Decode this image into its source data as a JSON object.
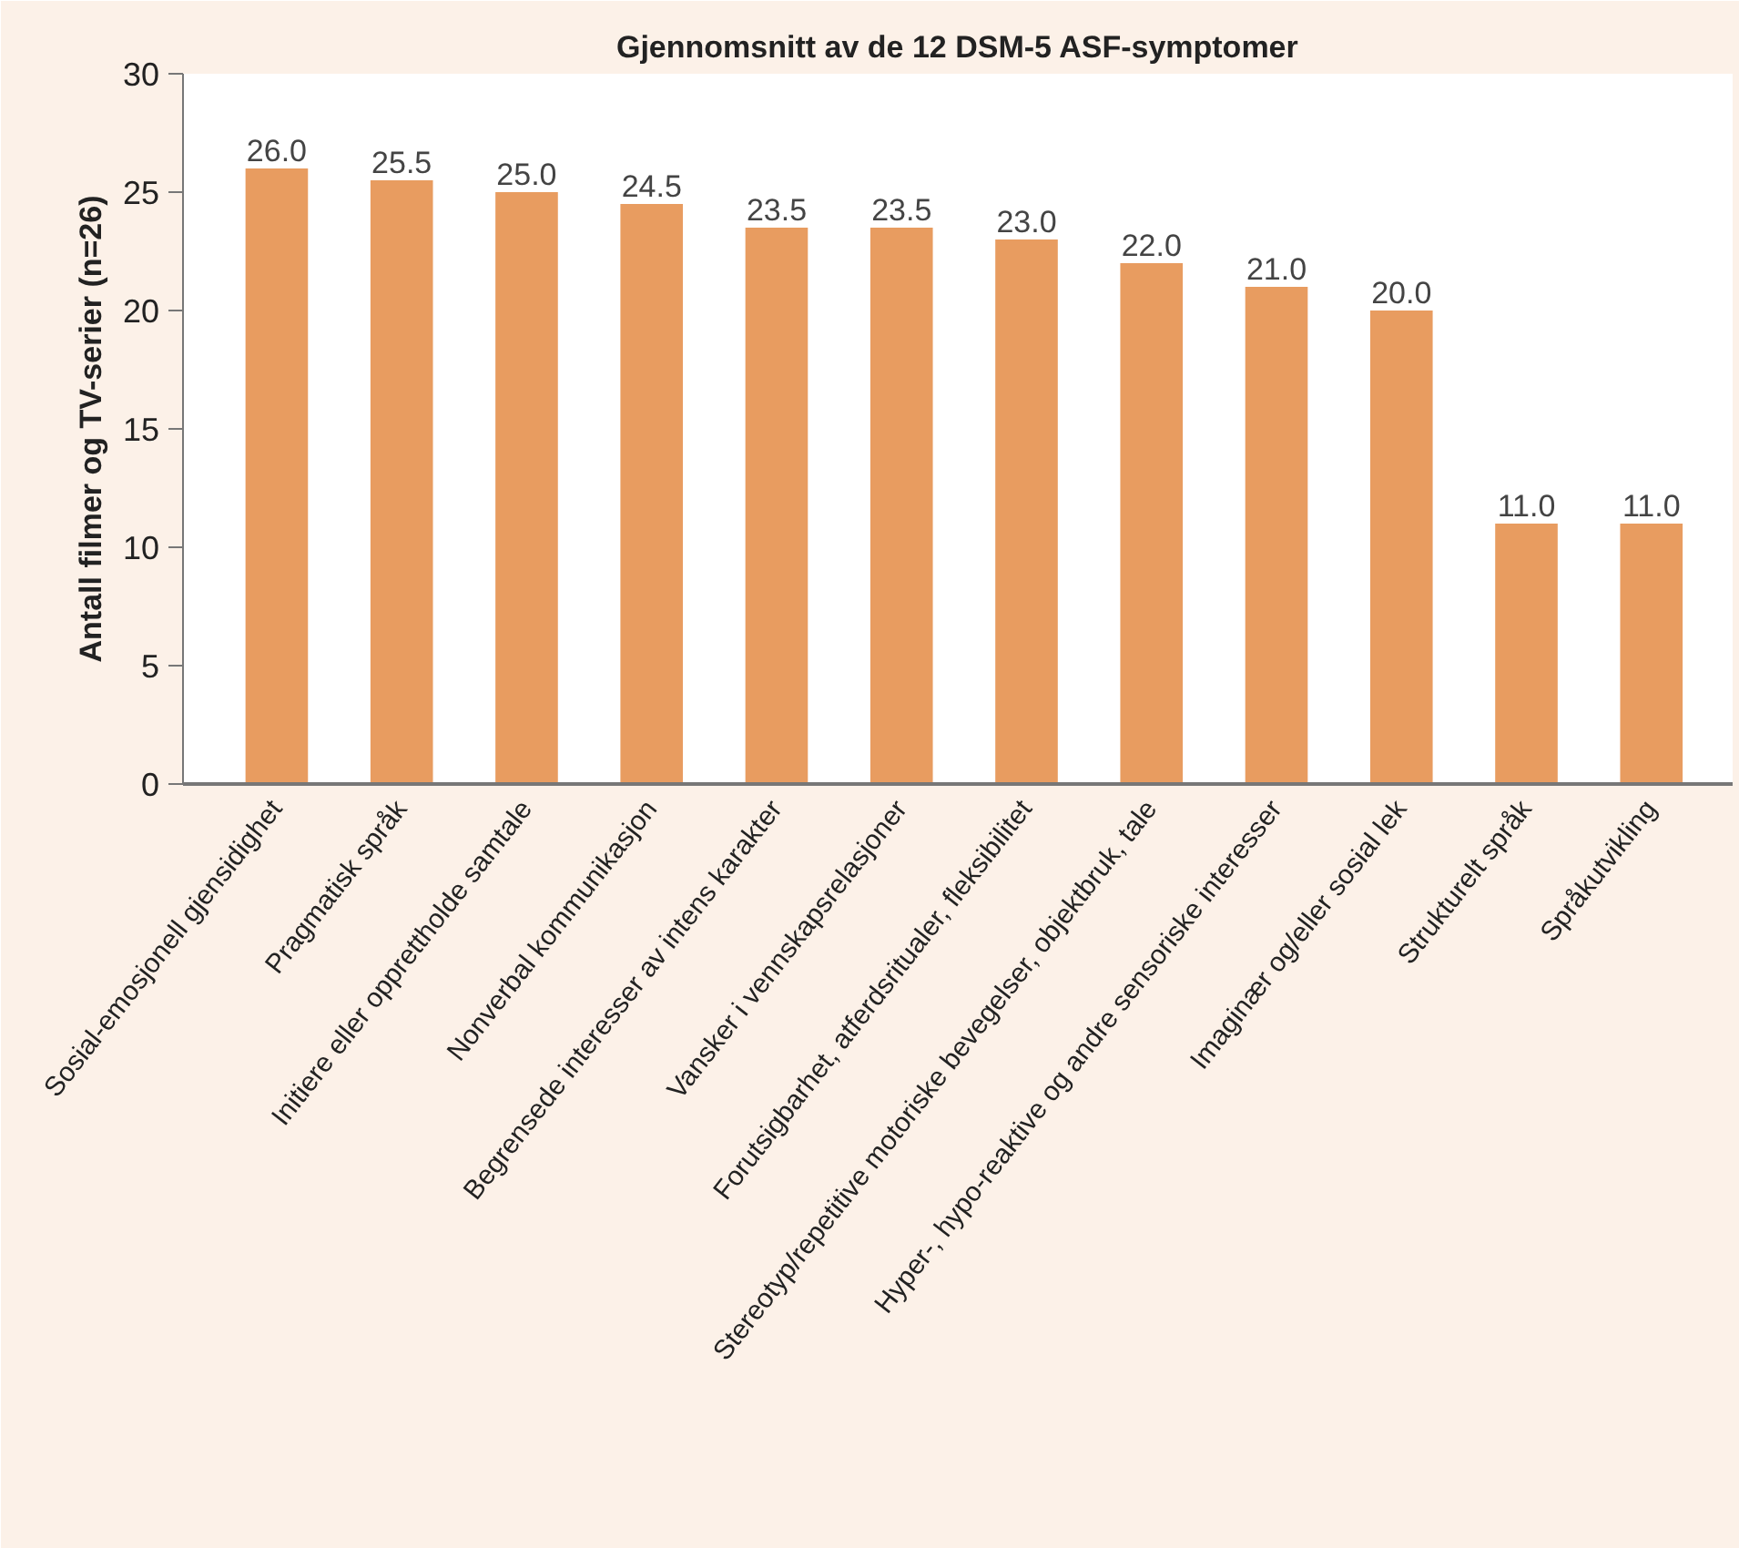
{
  "chart_data": {
    "type": "bar",
    "title": "Gjennomsnitt av de 12 DSM-5 ASF-symptomer",
    "ylabel": "Antall filmer og TV-serier (n=26)",
    "categories": [
      "Sosial-emosjonell gjensidighet",
      "Pragmatisk språk",
      "Initiere eller opprettholde samtale",
      "Nonverbal kommunikasjon",
      "Begrensede interesser av intens karakter",
      "Vansker i vennskapsrelasjoner",
      "Forutsigbarhet, atferdsritualer, fleksibilitet",
      "Stereotyp/repetitive motoriske bevegelser, objektbruk, tale",
      "Hyper-, hypo-reaktive og andre sensoriske interesser",
      "Imaginær og/eller sosial lek",
      "Strukturelt språk",
      "Språkutvikling"
    ],
    "values": [
      26.0,
      25.5,
      25.0,
      24.5,
      23.5,
      23.5,
      23.0,
      22.0,
      21.0,
      20.0,
      11.0,
      11.0
    ],
    "value_labels": [
      "26.0",
      "25.5",
      "25.0",
      "24.5",
      "23.5",
      "23.5",
      "23.0",
      "22.0",
      "21.0",
      "20.0",
      "11.0",
      "11.0"
    ],
    "color": "#e89c60",
    "ylim": [
      0,
      30
    ],
    "yticks": [
      0,
      5,
      10,
      15,
      20,
      25,
      30
    ],
    "grid": false
  }
}
